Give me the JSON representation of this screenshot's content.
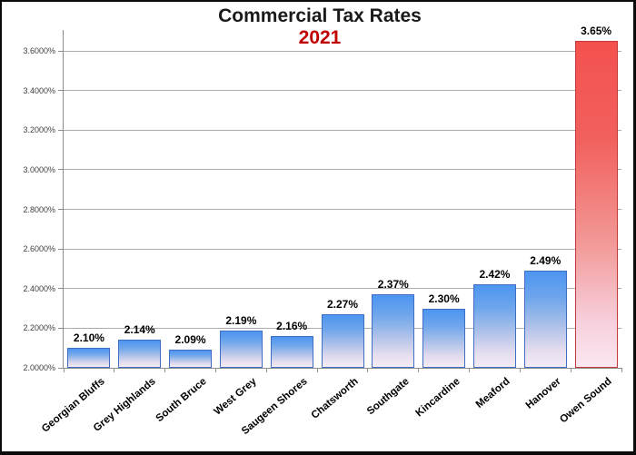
{
  "chart_data": {
    "type": "bar",
    "title": "Commercial Tax Rates",
    "subtitle": "2021",
    "categories": [
      "Georgian Bluffs",
      "Grey Highlands",
      "South Bruce",
      "West Grey",
      "Saugeen Shores",
      "Chatsworth",
      "Southgate",
      "Kincardine",
      "Meaford",
      "Hanover",
      "Owen Sound"
    ],
    "values": [
      2.1,
      2.14,
      2.09,
      2.19,
      2.16,
      2.27,
      2.37,
      2.3,
      2.42,
      2.49,
      3.65
    ],
    "value_labels": [
      "2.10%",
      "2.14%",
      "2.09%",
      "2.19%",
      "2.16%",
      "2.27%",
      "2.37%",
      "2.30%",
      "2.42%",
      "2.49%",
      "3.65%"
    ],
    "xlabel": "",
    "ylabel": "",
    "ylim": [
      2.0,
      3.6
    ],
    "yticks": [
      {
        "value": 2.0,
        "label": "2.0000%"
      },
      {
        "value": 2.2,
        "label": "2.2000%"
      },
      {
        "value": 2.4,
        "label": "2.4000%"
      },
      {
        "value": 2.6,
        "label": "2.6000%"
      },
      {
        "value": 2.8,
        "label": "2.8000%"
      },
      {
        "value": 3.0,
        "label": "3.0000%"
      },
      {
        "value": 3.2,
        "label": "3.2000%"
      },
      {
        "value": 3.4,
        "label": "3.4000%"
      },
      {
        "value": 3.6,
        "label": "3.6000%"
      }
    ],
    "grid": "horizontal",
    "legend": "none",
    "highlight_category": "Owen Sound",
    "colors": {
      "default_bar_top": "#4D95F1",
      "default_bar_bottom": "#F4ECF4",
      "default_bar_border": "#3E6FC1",
      "highlight_bar_top": "#F4514E",
      "highlight_bar_bottom": "#FAE7F0",
      "highlight_bar_border": "#C23B38",
      "title": "#1A1A1A",
      "subtitle": "#C00000",
      "gridline": "#ABABAB",
      "axis": "#8C8C8C"
    }
  }
}
